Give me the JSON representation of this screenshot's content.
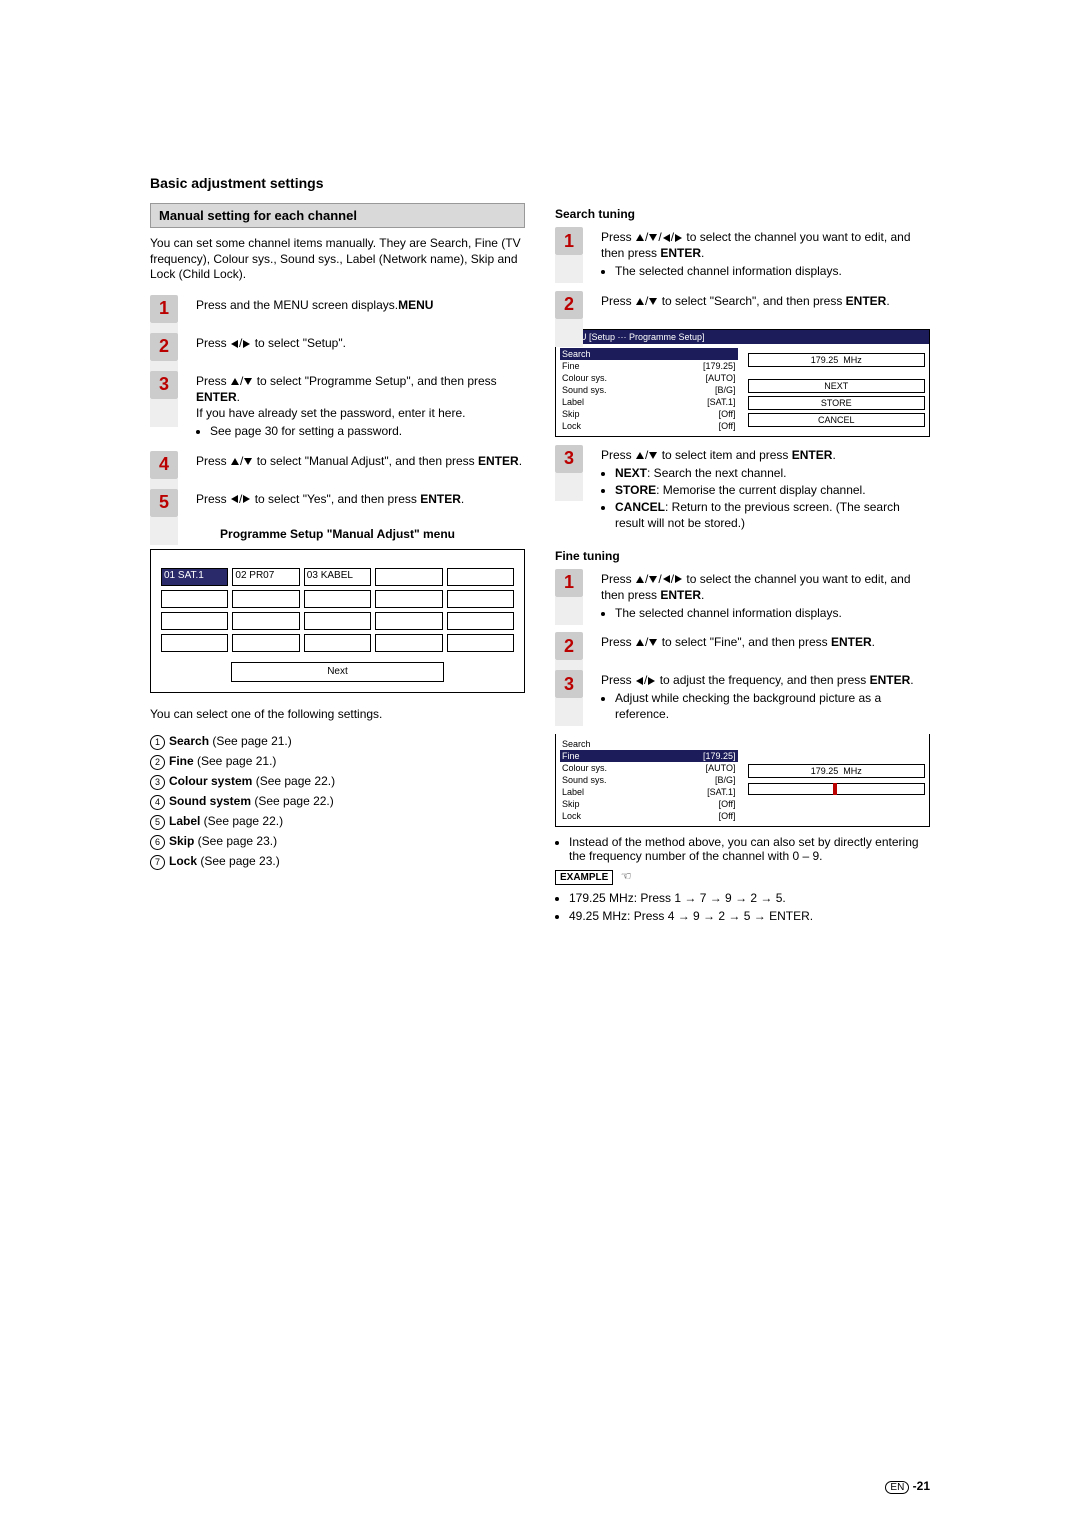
{
  "header": {
    "title": "Basic adjustment settings"
  },
  "left": {
    "box_title": "Manual setting for each channel",
    "intro": "You can set some channel items manually. They are Search, Fine (TV frequency), Colour sys., Sound sys., Label (Network name), Skip and Lock (Child Lock).",
    "steps": [
      {
        "n": "1",
        "pre": "Press ",
        "bold": "MENU",
        "post": " and the MENU screen displays."
      },
      {
        "n": "2",
        "pre": "Press ",
        "arrows": "lr",
        "post": " to select \"Setup\"."
      },
      {
        "n": "3",
        "pre": "Press ",
        "arrows": "ud",
        "post_a": " to select \"Programme Setup\", and then press ",
        "bold": "ENTER",
        "post_b": ".",
        "extra": "If you have already set the password, enter it here.",
        "bullet": "See page 30 for setting a password."
      },
      {
        "n": "4",
        "pre": "Press ",
        "arrows": "ud",
        "post_a": " to select \"Manual Adjust\", and then press ",
        "bold": "ENTER",
        "post_b": "."
      },
      {
        "n": "5",
        "pre": "Press ",
        "arrows": "lr",
        "post_a": " to select \"Yes\", and then press ",
        "bold": "ENTER",
        "post_b": "."
      }
    ],
    "table_title": "Programme Setup \"Manual Adjust\" menu",
    "grid_cells": [
      "01  SAT.1",
      "02  PR07",
      "03  KABEL",
      "",
      "",
      "",
      "",
      "",
      "",
      "",
      "",
      "",
      "",
      "",
      "",
      "",
      "",
      "",
      "",
      ""
    ],
    "grid_selected_index": 0,
    "next_label": "Next",
    "after_table": "You can select one of the following settings.",
    "settings": [
      {
        "n": "1",
        "bold": "Search",
        "rest": " (See page 21.)"
      },
      {
        "n": "2",
        "bold": "Fine",
        "rest": " (See page 21.)"
      },
      {
        "n": "3",
        "bold": "Colour system",
        "rest": " (See page 22.)"
      },
      {
        "n": "4",
        "bold": "Sound system",
        "rest": " (See page 22.)"
      },
      {
        "n": "5",
        "bold": "Label",
        "rest": " (See page 22.)"
      },
      {
        "n": "6",
        "bold": "Skip",
        "rest": " (See page 23.)"
      },
      {
        "n": "7",
        "bold": "Lock",
        "rest": " (See page 23.)"
      }
    ]
  },
  "right": {
    "search_heading": "Search tuning",
    "search_steps": [
      {
        "n": "1",
        "pre": "Press ",
        "arrows": "udlr",
        "post_a": " to select the channel you want to edit, and then press ",
        "bold": "ENTER",
        "post_b": ".",
        "bullet": "The selected channel information displays."
      },
      {
        "n": "2",
        "pre": "Press ",
        "arrows": "ud",
        "post_a": " to select \"Search\", and then press ",
        "bold": "ENTER",
        "post_b": "."
      }
    ],
    "osd1": {
      "title": "MENU    [Setup ··· Programme Setup]",
      "rows": [
        {
          "l": "Search",
          "r": "",
          "sel": true
        },
        {
          "l": "Fine",
          "r": "[179.25]"
        },
        {
          "l": "Colour sys.",
          "r": "[AUTO]"
        },
        {
          "l": "Sound sys.",
          "r": "[B/G]"
        },
        {
          "l": "Label",
          "r": "[SAT.1]"
        },
        {
          "l": "Skip",
          "r": "[Off]"
        },
        {
          "l": "Lock",
          "r": "[Off]"
        }
      ],
      "freq": "179.25",
      "unit": "MHz",
      "buttons": [
        "NEXT",
        "STORE",
        "CANCEL"
      ]
    },
    "search_step3": {
      "n": "3",
      "line1_pre": "Press ",
      "line1_arrows": "ud",
      "line1_mid": " to select item and press ",
      "line1_bold": "ENTER",
      "line1_post": ".",
      "bullets": [
        {
          "b": "NEXT",
          "t": ": Search the next channel."
        },
        {
          "b": "STORE",
          "t": ": Memorise the current display channel."
        },
        {
          "b": "CANCEL",
          "t": ": Return to the previous screen. (The search result will not be stored.)"
        }
      ]
    },
    "fine_heading": "Fine tuning",
    "fine_steps12": [
      {
        "n": "1",
        "pre": "Press ",
        "arrows": "udlr",
        "post_a": " to select the channel you want to edit, and then press ",
        "bold": "ENTER",
        "post_b": ".",
        "bullet": "The selected channel information displays."
      },
      {
        "n": "2",
        "pre": "Press ",
        "arrows": "ud",
        "post_a": " to select \"Fine\", and then press ",
        "bold": "ENTER",
        "post_b": "."
      }
    ],
    "fine_step3": {
      "n": "3",
      "pre": "Press ",
      "arrows": "lr",
      "mid": " to adjust the frequency, and then press ",
      "bold": "ENTER",
      "post": ".",
      "bullet": "Adjust while checking the background picture as a reference."
    },
    "osd2": {
      "rows": [
        {
          "l": "Search",
          "r": ""
        },
        {
          "l": "Fine",
          "r": "[179.25]",
          "sel": true
        },
        {
          "l": "Colour sys.",
          "r": "[AUTO]"
        },
        {
          "l": "Sound sys.",
          "r": "[B/G]"
        },
        {
          "l": "Label",
          "r": "[SAT.1]"
        },
        {
          "l": "Skip",
          "r": "[Off]"
        },
        {
          "l": "Lock",
          "r": "[Off]"
        }
      ],
      "freq": "179.25",
      "unit": "MHz"
    },
    "fine_note": "Instead of the method above, you can also set by directly entering the frequency number of the channel with 0 – 9.",
    "example_label": "EXAMPLE",
    "ex1": "179.25 MHz: Press 1 → 7 → 9 → 2 → 5.",
    "ex2": "49.25 MHz: Press 4 → 9 → 2 → 5 → ENTER."
  },
  "page_number": "-21",
  "lang": "EN"
}
